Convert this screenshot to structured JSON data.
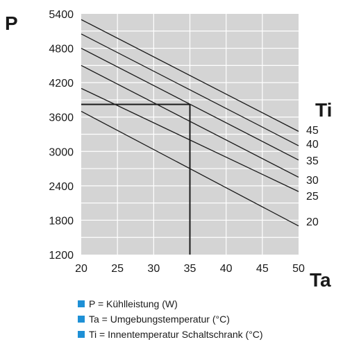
{
  "colors": {
    "plot_background": "#d4d4d4",
    "grid": "#ffffff",
    "line": "#1a1a1a",
    "legend_marker": "#1e90d6"
  },
  "chart_data": {
    "type": "line",
    "ylabel": "P",
    "xlabel": "Ta",
    "series_label_title": "Ti",
    "xlim": [
      20,
      50
    ],
    "ylim": [
      1200,
      5400
    ],
    "x_ticks": [
      20,
      25,
      30,
      35,
      40,
      45,
      50
    ],
    "x_tick_labels": [
      "20",
      "25",
      "30",
      "35",
      "40",
      "45",
      "50"
    ],
    "y_ticks": [
      1200,
      1800,
      2400,
      3000,
      3600,
      4200,
      4800,
      5400
    ],
    "y_tick_labels": [
      "1200",
      "1800",
      "2400",
      "3000",
      "3600",
      "4200",
      "4800",
      "5400"
    ],
    "grid": true,
    "series": [
      {
        "name": "45",
        "x": [
          20,
          50
        ],
        "y": [
          5300,
          3350
        ]
      },
      {
        "name": "40",
        "x": [
          20,
          50
        ],
        "y": [
          5050,
          3100
        ]
      },
      {
        "name": "35",
        "x": [
          20,
          50
        ],
        "y": [
          4800,
          2850
        ]
      },
      {
        "name": "30",
        "x": [
          20,
          50
        ],
        "y": [
          4500,
          2550
        ]
      },
      {
        "name": "25",
        "x": [
          20,
          50
        ],
        "y": [
          4100,
          2300
        ]
      },
      {
        "name": "20",
        "x": [
          20,
          50
        ],
        "y": [
          3700,
          1700
        ]
      }
    ],
    "annotation": {
      "x": 35,
      "y": 3820
    }
  },
  "legend": [
    "P = Kühlleistung (W)",
    "Ta = Umgebungstemperatur (°C)",
    "Ti =  Innentemperatur Schaltschrank (°C)"
  ]
}
